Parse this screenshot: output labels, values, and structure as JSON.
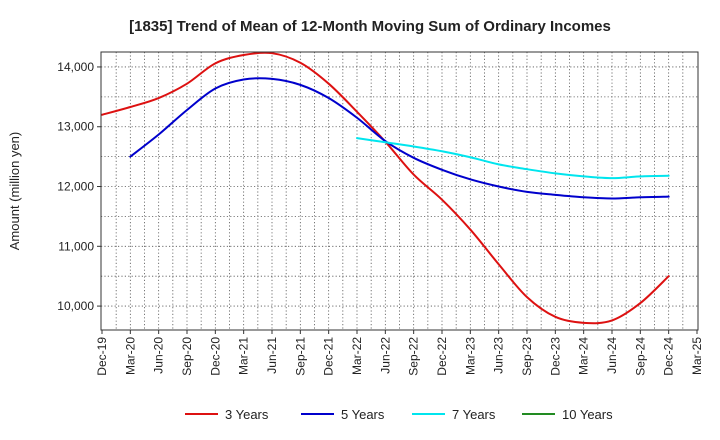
{
  "chart_data": {
    "type": "line",
    "title": "[1835]  Trend of Mean of 12-Month Moving Sum of Ordinary Incomes",
    "xlabel": "",
    "ylabel": "Amount (million yen)",
    "ylim": [
      9600,
      14250
    ],
    "yticks": [
      10000,
      11000,
      12000,
      13000,
      14000
    ],
    "ytick_labels": [
      "10,000",
      "11,000",
      "12,000",
      "13,000",
      "14,000"
    ],
    "grid": true,
    "legend_position": "bottom",
    "categories": [
      "Dec-19",
      "Mar-20",
      "Jun-20",
      "Sep-20",
      "Dec-20",
      "Mar-21",
      "Jun-21",
      "Sep-21",
      "Dec-21",
      "Mar-22",
      "Jun-22",
      "Sep-22",
      "Dec-22",
      "Mar-23",
      "Jun-23",
      "Sep-23",
      "Dec-23",
      "Mar-24",
      "Jun-24",
      "Sep-24",
      "Dec-24",
      "Mar-25"
    ],
    "series": [
      {
        "name": "3 Years",
        "color": "#dd1111",
        "values": [
          13200,
          13330,
          13480,
          13720,
          14060,
          14200,
          14230,
          14070,
          13720,
          13250,
          12750,
          12200,
          11780,
          11280,
          10700,
          10150,
          9820,
          9720,
          9760,
          10050,
          10500,
          null
        ]
      },
      {
        "name": "5 Years",
        "color": "#0000cc",
        "values": [
          null,
          12500,
          12870,
          13280,
          13640,
          13790,
          13800,
          13700,
          13480,
          13150,
          12760,
          12480,
          12280,
          12120,
          12000,
          11910,
          11860,
          11820,
          11800,
          11820,
          11830,
          null
        ]
      },
      {
        "name": "7 Years",
        "color": "#00e5ee",
        "values": [
          null,
          null,
          null,
          null,
          null,
          null,
          null,
          null,
          null,
          12810,
          12740,
          12670,
          12590,
          12490,
          12370,
          12290,
          12220,
          12170,
          12140,
          12170,
          12180,
          null
        ]
      },
      {
        "name": "10 Years",
        "color": "#228b22",
        "values": [
          null,
          null,
          null,
          null,
          null,
          null,
          null,
          null,
          null,
          null,
          null,
          null,
          null,
          null,
          null,
          null,
          null,
          null,
          null,
          null,
          null,
          null
        ]
      }
    ]
  }
}
